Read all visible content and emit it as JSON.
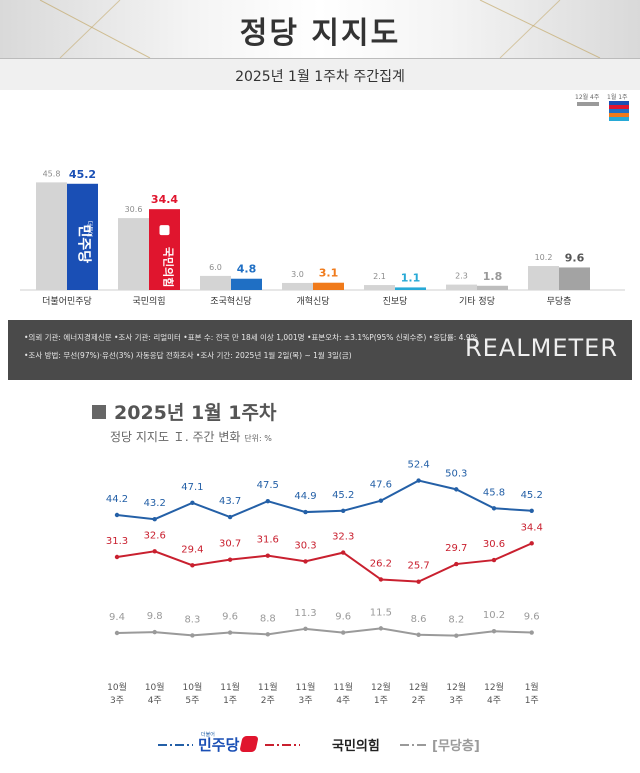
{
  "header": {
    "title": "정당 지지도"
  },
  "subheader": {
    "text": "2025년 1월 1주차 주간집계"
  },
  "bar_legend": {
    "prev": "12월 4주",
    "curr": "1월 1주"
  },
  "footer": {
    "note1": "•의뢰 기관: 에너지경제신문  •조사 기관: 리얼미터  •표본 수: 전국 만 18세 이상 1,001명  •표본오차: ±3.1%P(95% 신뢰수준)  •응답률: 4.9%",
    "note2": "•조사 방법: 무선(97%)·유선(3%) 자동응답 전화조사  •조사 기간: 2025년 1월 2일(목) ~ 1월 3일(금)",
    "brand": "REALMETER"
  },
  "line_section": {
    "title": "2025년 1월 1주차",
    "subtitle": "정당 지지도 Ｉ. 주간 변화",
    "unit": "단위: %"
  },
  "chart_data": [
    {
      "type": "bar",
      "categories": [
        "더불어민주당",
        "국민의힘",
        "조국혁신당",
        "개혁신당",
        "진보당",
        "기타 정당",
        "무당층"
      ],
      "series": [
        {
          "name": "12월 4주",
          "values": [
            45.8,
            30.6,
            6.0,
            3.0,
            2.1,
            2.3,
            10.2
          ]
        },
        {
          "name": "1월 1주",
          "values": [
            45.2,
            34.4,
            4.8,
            3.1,
            1.1,
            1.8,
            9.6
          ]
        }
      ],
      "prev_labels": [
        "45.8",
        "30.6",
        "6.0",
        "3.0",
        "2.1",
        "2.3",
        "10.2"
      ],
      "curr_labels": [
        "45.2",
        "34.4",
        "4.8",
        "3.1",
        "1.1",
        "1.8",
        "9.6"
      ],
      "colors": {
        "prev": "#d4d4d4",
        "curr": [
          "#1a4fb5",
          "#e0152e",
          "#1f6fc4",
          "#f07a1a",
          "#27a9d6",
          "#bdbdbd",
          "#a3a3a3"
        ],
        "curr_text": [
          "#1a4fb5",
          "#e0152e",
          "#1f6fc4",
          "#f07a1a",
          "#27a9d6",
          "#999999",
          "#555555"
        ]
      },
      "bar_text": {
        "democratic": "민주당",
        "ppp": "국민의힘",
        "logo_small": "더불어"
      },
      "ylim": [
        0,
        50
      ]
    },
    {
      "type": "line",
      "x": [
        "10월\n3주",
        "10월\n4주",
        "10월\n5주",
        "11월\n1주",
        "11월\n2주",
        "11월\n3주",
        "11월\n4주",
        "12월\n1주",
        "12월\n2주",
        "12월\n3주",
        "12월\n4주",
        "1월\n1주"
      ],
      "series": [
        {
          "name": "민주당",
          "color": "#2460a7",
          "values": [
            44.2,
            43.2,
            47.1,
            43.7,
            47.5,
            44.9,
            45.2,
            47.6,
            52.4,
            50.3,
            45.8,
            45.2
          ],
          "labels": [
            "44.2",
            "43.2",
            "47.1",
            "43.7",
            "47.5",
            "44.9",
            "45.2",
            "47.6",
            "52.4",
            "50.3",
            "45.8",
            "45.2"
          ]
        },
        {
          "name": "국민의힘",
          "color": "#c9202f",
          "values": [
            31.3,
            32.6,
            29.4,
            30.7,
            31.6,
            30.3,
            32.3,
            26.2,
            25.7,
            29.7,
            30.6,
            34.4
          ],
          "labels": [
            "31.3",
            "32.6",
            "29.4",
            "30.7",
            "31.6",
            "30.3",
            "32.3",
            "26.2",
            "25.7",
            "29.7",
            "30.6",
            "34.4"
          ]
        },
        {
          "name": "[무당층]",
          "color": "#9a9a9a",
          "values": [
            9.4,
            9.8,
            8.3,
            9.6,
            8.8,
            11.3,
            9.6,
            11.5,
            8.6,
            8.2,
            10.2,
            9.6
          ],
          "labels": [
            "9.4",
            "9.8",
            "8.3",
            "9.6",
            "8.8",
            "11.3",
            "9.6",
            "11.5",
            "8.6",
            "8.2",
            "10.2",
            "9.6"
          ]
        }
      ],
      "legend_logo_small": "더불어"
    }
  ]
}
